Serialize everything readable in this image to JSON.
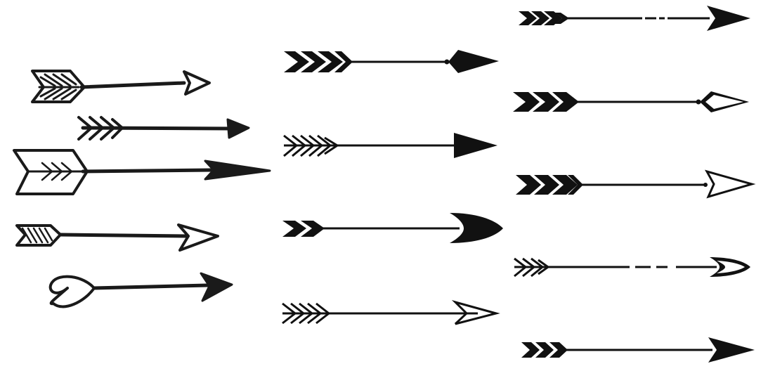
{
  "ink_color": "#1a1a1a",
  "background_color": "#ffffff",
  "columns": [
    {
      "style": "hand-drawn",
      "arrows": [
        {
          "icon": "hand-drawn-striped-fletching-arrow-icon"
        },
        {
          "icon": "hand-drawn-feather-arrow-icon"
        },
        {
          "icon": "hand-drawn-wide-fletching-arrow-icon"
        },
        {
          "icon": "hand-drawn-hatched-fletching-arrow-icon"
        },
        {
          "icon": "hand-drawn-heart-tail-arrow-icon"
        }
      ]
    },
    {
      "style": "bold",
      "arrows": [
        {
          "icon": "bold-chevron-fletching-diamond-tip-arrow-icon"
        },
        {
          "icon": "thin-feather-fletching-arrow-icon"
        },
        {
          "icon": "double-chevron-curved-tip-arrow-icon"
        },
        {
          "icon": "feather-fletching-outline-tip-arrow-icon"
        }
      ]
    },
    {
      "style": "slim",
      "arrows": [
        {
          "icon": "dashed-shaft-arrow-icon"
        },
        {
          "icon": "chevron-fletching-kite-tip-arrow-icon"
        },
        {
          "icon": "solid-chevron-fletching-outline-tip-arrow-icon"
        },
        {
          "icon": "dashed-shaft-rounded-tip-arrow-icon"
        },
        {
          "icon": "triple-chevron-arrow-icon"
        }
      ]
    }
  ]
}
